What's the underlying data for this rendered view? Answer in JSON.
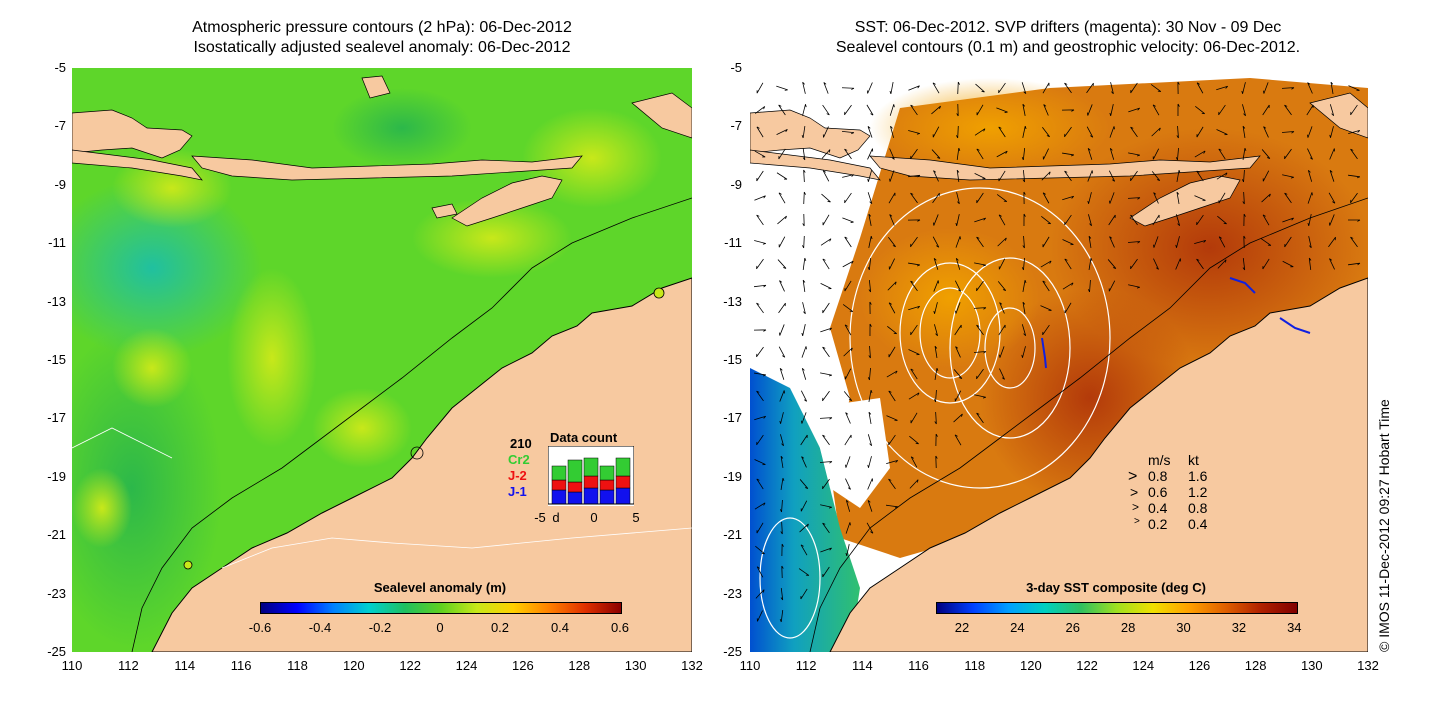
{
  "left_panel": {
    "title_line1": "Atmospheric pressure contours (2 hPa): 06-Dec-2012",
    "title_line2": "Isostatically adjusted sealevel anomaly: 06-Dec-2012",
    "colorbar_title": "Sealevel anomaly (m)",
    "colorbar_ticks": [
      "-0.6",
      "-0.4",
      "-0.2",
      "0",
      "0.2",
      "0.4",
      "0.6"
    ],
    "inset": {
      "count": "210",
      "title": "Data count",
      "cr2": "Cr2",
      "j2": "J-2",
      "j1": "J-1",
      "xticks": [
        "-5",
        "d",
        "0",
        "5"
      ],
      "colors": {
        "cr2": "#33cc33",
        "j2": "#ee1111",
        "j1": "#1111ee"
      }
    }
  },
  "right_panel": {
    "title_line1": "SST: 06-Dec-2012. SVP drifters (magenta): 30 Nov - 09 Dec",
    "title_line2": "Sealevel contours (0.1 m) and geostrophic velocity: 06-Dec-2012.",
    "colorbar_title": "3-day SST composite (deg C)",
    "colorbar_ticks": [
      "22",
      "24",
      "26",
      "28",
      "30",
      "32",
      "34"
    ],
    "speed_legend": {
      "header_ms": "m/s",
      "header_kt": "kt",
      "rows": [
        {
          "ms": "0.8",
          "kt": "1.6"
        },
        {
          "ms": "0.6",
          "kt": "1.2"
        },
        {
          "ms": "0.4",
          "kt": "0.8"
        },
        {
          "ms": "0.2",
          "kt": "0.4"
        }
      ]
    }
  },
  "axes": {
    "y_ticks": [
      "-5",
      "-7",
      "-9",
      "-11",
      "-13",
      "-15",
      "-17",
      "-19",
      "-21",
      "-23",
      "-25"
    ],
    "x_ticks": [
      "110",
      "112",
      "114",
      "116",
      "118",
      "120",
      "122",
      "124",
      "126",
      "128",
      "130",
      "132"
    ]
  },
  "credit": "© IMOS 11-Dec-2012 09:27 Hobart Time",
  "colors": {
    "land": "#f7c9a0",
    "sla_base": "#5ed62a",
    "sst_base": "#d97a10"
  }
}
